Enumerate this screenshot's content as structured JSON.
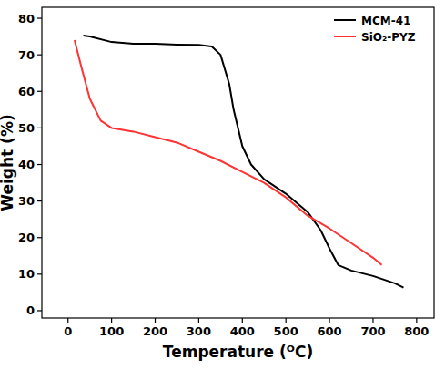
{
  "chart_data": {
    "type": "line",
    "x_label": "Temperature (ᴼC)",
    "y_label": "Weight (%)",
    "xlim": [
      -60,
      840
    ],
    "xticks": [
      0,
      100,
      200,
      300,
      400,
      500,
      600,
      700,
      800
    ],
    "ylim": [
      -2,
      83
    ],
    "yticks": [
      0,
      10,
      20,
      30,
      40,
      50,
      60,
      70,
      80
    ],
    "grid": false,
    "legend": "top-right",
    "series": [
      {
        "name": "MCM-41",
        "color": "#000000",
        "x": [
          35,
          50,
          100,
          150,
          200,
          250,
          300,
          330,
          350,
          370,
          380,
          400,
          420,
          450,
          500,
          550,
          580,
          600,
          620,
          650,
          700,
          750,
          770
        ],
        "values": [
          75.3,
          75,
          73.5,
          73,
          73,
          72.8,
          72.7,
          72.3,
          70,
          62,
          55,
          45,
          40,
          36,
          32,
          27,
          22,
          17,
          12.5,
          11,
          9.5,
          7.5,
          6.3
        ]
      },
      {
        "name": "SiO₂-PYZ",
        "color": "#ff3333",
        "x": [
          15,
          30,
          50,
          75,
          100,
          150,
          200,
          250,
          300,
          350,
          400,
          450,
          500,
          550,
          600,
          650,
          700,
          720
        ],
        "values": [
          74,
          67,
          58,
          52,
          50,
          49,
          47.5,
          46,
          43.5,
          41,
          38,
          35,
          31,
          26,
          22.5,
          18.5,
          14.5,
          12.5
        ]
      }
    ]
  }
}
